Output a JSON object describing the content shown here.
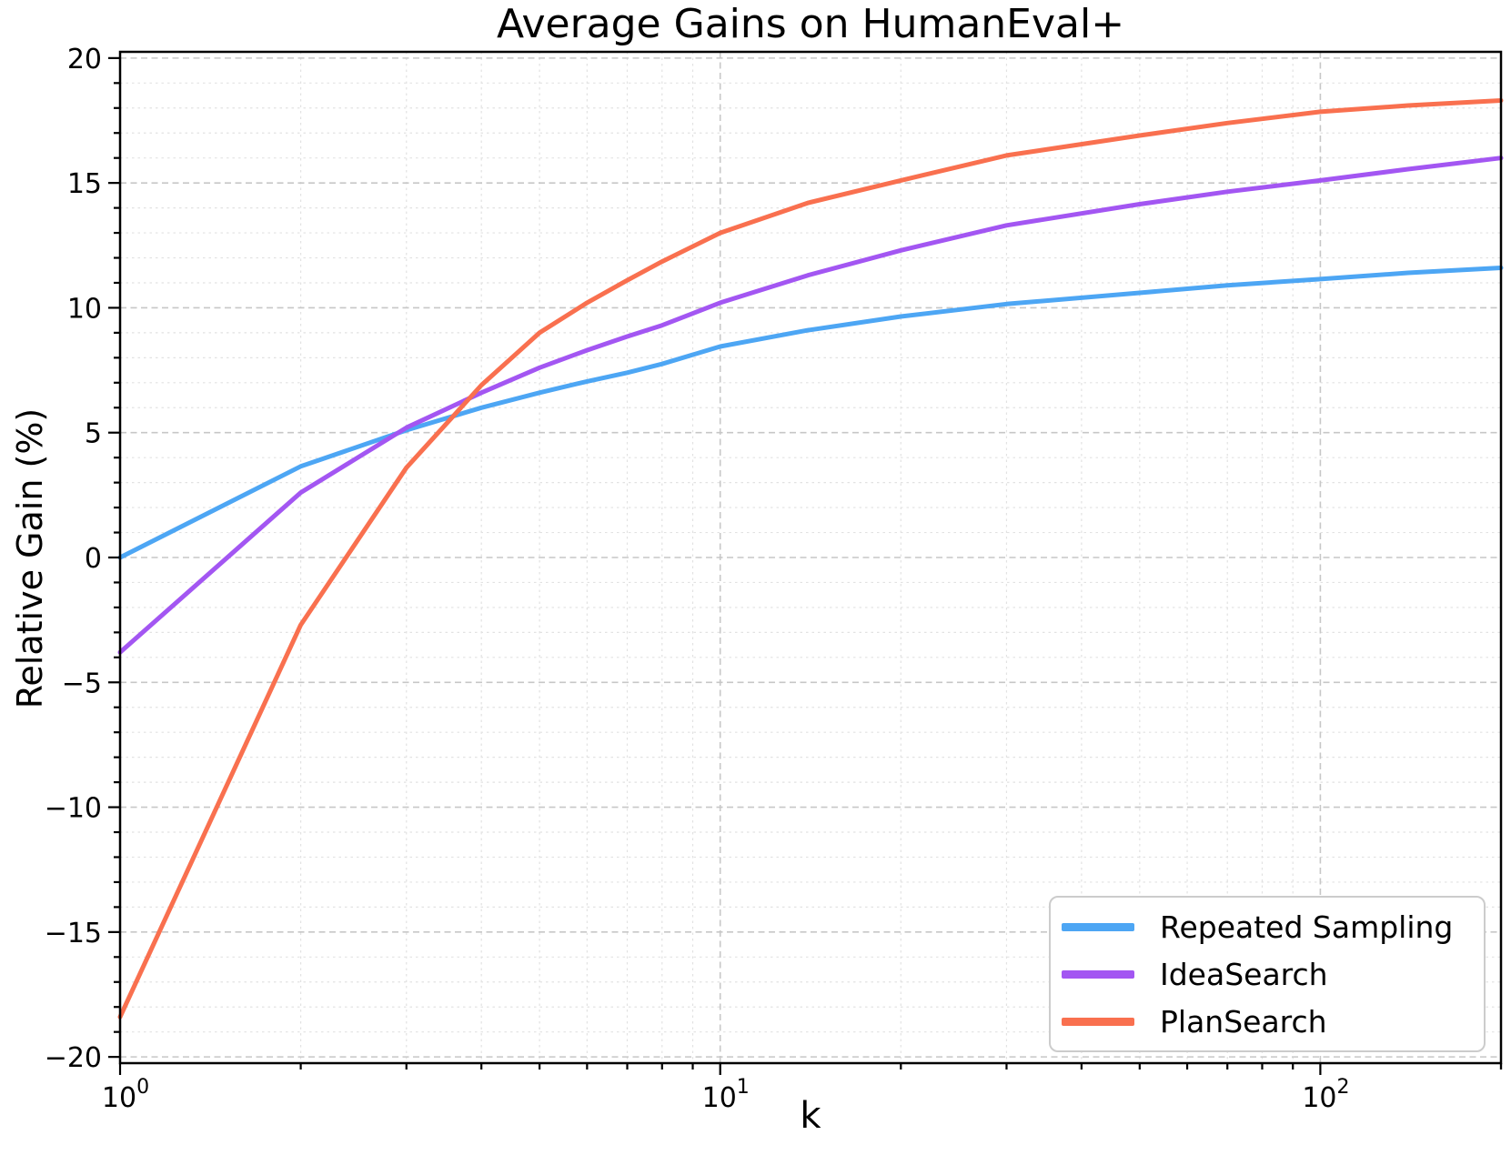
{
  "chart_data": {
    "type": "line",
    "title": "Average Gains on HumanEval+",
    "xlabel": "k",
    "ylabel": "Relative Gain (%)",
    "x_scale": "log",
    "xlim": [
      1,
      200
    ],
    "ylim": [
      -20,
      20
    ],
    "grid": true,
    "legend_position": "lower right",
    "x_ticks": [
      {
        "k": 1,
        "label": "10⁰",
        "base": "10",
        "exp": "0"
      },
      {
        "k": 10,
        "label": "10¹",
        "base": "10",
        "exp": "1"
      },
      {
        "k": 100,
        "label": "10²",
        "base": "10",
        "exp": "2"
      }
    ],
    "y_ticks": [
      {
        "value": 20,
        "label": "20"
      },
      {
        "value": 15,
        "label": "15"
      },
      {
        "value": 10,
        "label": "10"
      },
      {
        "value": 5,
        "label": "5"
      },
      {
        "value": 0,
        "label": "0"
      },
      {
        "value": -5,
        "label": "−5"
      },
      {
        "value": -10,
        "label": "−10"
      },
      {
        "value": -15,
        "label": "−15"
      },
      {
        "value": -20,
        "label": "−20"
      }
    ],
    "series": [
      {
        "name": "Repeated Sampling",
        "color": "#4da6f4",
        "points": [
          [
            1,
            0.0
          ],
          [
            2,
            3.65
          ],
          [
            3,
            5.1
          ],
          [
            4,
            6.0
          ],
          [
            5,
            6.6
          ],
          [
            6,
            7.05
          ],
          [
            7,
            7.4
          ],
          [
            8,
            7.75
          ],
          [
            10,
            8.45
          ],
          [
            14,
            9.1
          ],
          [
            20,
            9.65
          ],
          [
            30,
            10.15
          ],
          [
            50,
            10.6
          ],
          [
            70,
            10.9
          ],
          [
            100,
            11.15
          ],
          [
            140,
            11.4
          ],
          [
            200,
            11.6
          ]
        ]
      },
      {
        "name": "IdeaSearch",
        "color": "#a356f2",
        "points": [
          [
            1,
            -3.8
          ],
          [
            2,
            2.6
          ],
          [
            3,
            5.2
          ],
          [
            4,
            6.6
          ],
          [
            5,
            7.6
          ],
          [
            6,
            8.3
          ],
          [
            7,
            8.85
          ],
          [
            8,
            9.3
          ],
          [
            10,
            10.2
          ],
          [
            14,
            11.3
          ],
          [
            20,
            12.3
          ],
          [
            30,
            13.3
          ],
          [
            50,
            14.15
          ],
          [
            70,
            14.65
          ],
          [
            100,
            15.1
          ],
          [
            140,
            15.55
          ],
          [
            200,
            16.0
          ]
        ]
      },
      {
        "name": "PlanSearch",
        "color": "#f9704f",
        "points": [
          [
            1,
            -18.4
          ],
          [
            2,
            -2.7
          ],
          [
            3,
            3.6
          ],
          [
            4,
            6.9
          ],
          [
            5,
            9.0
          ],
          [
            6,
            10.2
          ],
          [
            7,
            11.1
          ],
          [
            8,
            11.85
          ],
          [
            10,
            13.0
          ],
          [
            14,
            14.2
          ],
          [
            20,
            15.1
          ],
          [
            30,
            16.1
          ],
          [
            50,
            16.9
          ],
          [
            70,
            17.4
          ],
          [
            100,
            17.85
          ],
          [
            140,
            18.1
          ],
          [
            200,
            18.3
          ]
        ]
      }
    ]
  }
}
